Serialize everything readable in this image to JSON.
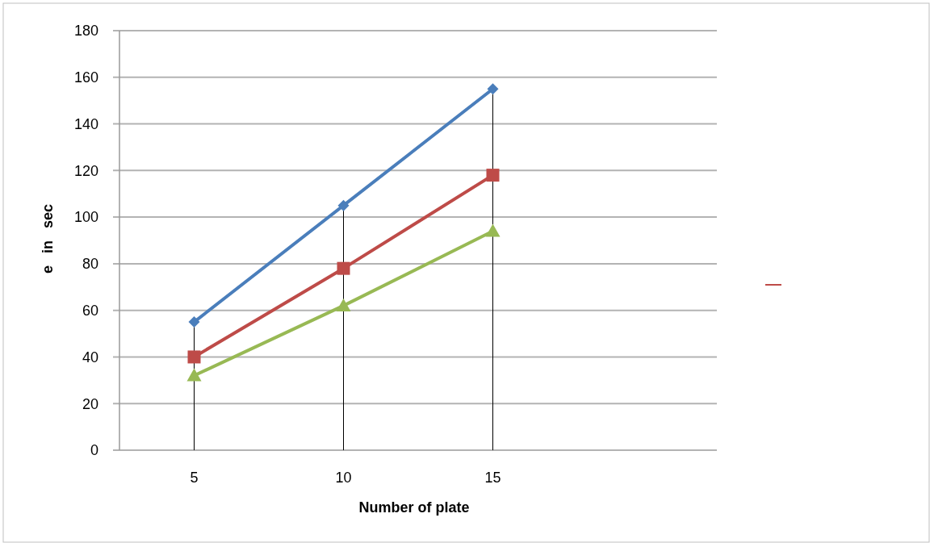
{
  "chart_data": {
    "type": "line",
    "xlabel": "Number of plate",
    "ylabel": "e   in   sec",
    "categories": [
      "5",
      "10",
      "15",
      null
    ],
    "series": [
      {
        "color": "#4a7ebb",
        "values": [
          55,
          105,
          155,
          null
        ],
        "marker": "diamond",
        "errors": [
          [
            0,
            55
          ],
          [
            0,
            105
          ],
          [
            0,
            155
          ],
          null
        ]
      },
      {
        "color": "#be4b48",
        "values": [
          40,
          78,
          118,
          null
        ],
        "marker": "square"
      },
      {
        "color": "#98b954",
        "values": [
          32,
          62,
          94,
          null
        ],
        "marker": "triangle"
      }
    ],
    "ylim": [
      0,
      180
    ],
    "yticks": [
      0,
      20,
      40,
      60,
      80,
      100,
      120,
      140,
      160,
      180
    ],
    "grid": "y"
  }
}
